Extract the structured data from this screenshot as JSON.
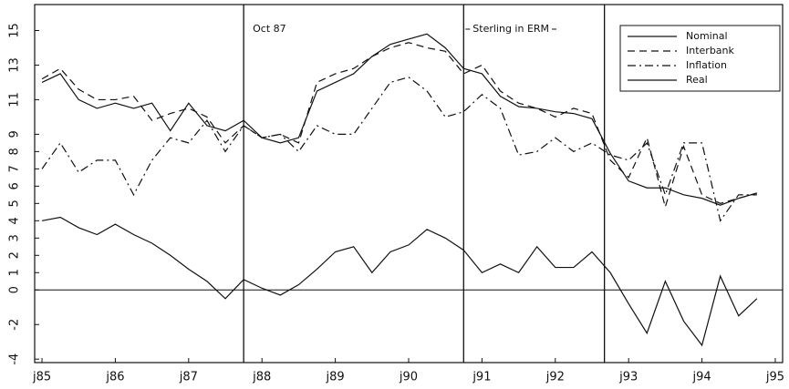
{
  "chart_data": {
    "type": "line",
    "x": [
      85,
      85.25,
      85.5,
      85.75,
      86,
      86.25,
      86.5,
      86.75,
      87,
      87.25,
      87.5,
      87.75,
      88,
      88.25,
      88.5,
      88.75,
      89,
      89.25,
      89.5,
      89.75,
      90,
      90.25,
      90.5,
      90.75,
      91,
      91.25,
      91.5,
      91.75,
      92,
      92.25,
      92.5,
      92.75,
      93,
      93.25,
      93.5,
      93.75,
      94,
      94.25,
      94.5,
      94.75
    ],
    "series": [
      {
        "name": "Nominal",
        "color": "#111111",
        "style": "solid",
        "values": [
          12,
          12.5,
          11,
          10.5,
          10.8,
          10.5,
          10.8,
          9.2,
          10.8,
          9.5,
          9.2,
          9.8,
          8.8,
          8.5,
          8.8,
          11.5,
          12,
          12.5,
          13.5,
          14.2,
          14.5,
          14.8,
          14,
          12.8,
          12.5,
          11.2,
          10.6,
          10.5,
          10.3,
          10.2,
          9.9,
          7.9,
          6.3,
          5.9,
          5.9,
          5.5,
          5.3,
          4.9,
          5.3,
          5.6
        ]
      },
      {
        "name": "Interbank",
        "color": "#111111",
        "style": "dashed",
        "values": [
          12.2,
          12.8,
          11.6,
          11,
          11,
          11.2,
          9.8,
          10.2,
          10.5,
          10,
          8.5,
          9.5,
          8.8,
          9,
          8.5,
          12,
          12.5,
          12.8,
          13.5,
          14,
          14.3,
          14,
          13.8,
          12.5,
          13,
          11.5,
          10.8,
          10.5,
          10,
          10.5,
          10.2,
          7.5,
          6.5,
          8.8,
          4.8,
          8.3,
          5.5,
          5,
          5.3,
          5.6
        ]
      },
      {
        "name": "Inflation",
        "color": "#111111",
        "style": "dashdot",
        "values": [
          7,
          8.5,
          6.8,
          7.5,
          7.5,
          5.5,
          7.5,
          8.8,
          8.5,
          9.8,
          8,
          9.5,
          8.8,
          9,
          8,
          9.5,
          9,
          9,
          10.5,
          12,
          12.3,
          11.5,
          10,
          10.3,
          11.3,
          10.5,
          7.8,
          8,
          8.8,
          8,
          8.5,
          7.8,
          7.5,
          8.5,
          5.5,
          8.5,
          8.5,
          4,
          5.5,
          5.5
        ]
      },
      {
        "name": "Real",
        "color": "#111111",
        "style": "solid",
        "values": [
          4,
          4.2,
          3.6,
          3.2,
          3.8,
          3.2,
          2.7,
          2,
          1.2,
          0.5,
          -0.5,
          0.6,
          0.1,
          -0.3,
          0.3,
          1.2,
          2.2,
          2.5,
          1,
          2.2,
          2.6,
          3.5,
          3,
          2.3,
          1,
          1.5,
          1,
          2.5,
          1.3,
          1.3,
          2.2,
          1,
          -0.8,
          -2.5,
          0.5,
          -1.8,
          -3.2,
          0.8,
          -1.5,
          -0.5
        ]
      }
    ],
    "xlim": [
      84.9,
      95.1
    ],
    "xticks": [
      {
        "value": 85,
        "label": "j85"
      },
      {
        "value": 86,
        "label": "j86"
      },
      {
        "value": 87,
        "label": "j87"
      },
      {
        "value": 88,
        "label": "j88"
      },
      {
        "value": 89,
        "label": "j89"
      },
      {
        "value": 90,
        "label": "j90"
      },
      {
        "value": 91,
        "label": "j91"
      },
      {
        "value": 92,
        "label": "j92"
      },
      {
        "value": 93,
        "label": "j93"
      },
      {
        "value": 94,
        "label": "j94"
      },
      {
        "value": 95,
        "label": "j95"
      }
    ],
    "ylim": [
      -4.2,
      16.5
    ],
    "yticks": [
      -4,
      -2,
      0,
      1,
      2,
      3,
      4,
      5,
      6,
      7,
      8,
      9,
      11,
      13,
      15
    ],
    "zero_line": 0,
    "events": [
      {
        "x": 87.75,
        "label": "Oct 87"
      },
      {
        "x": 90.75,
        "label": "Sterling in ERM"
      },
      {
        "x": 92.67
      }
    ],
    "legend": "top-right"
  }
}
